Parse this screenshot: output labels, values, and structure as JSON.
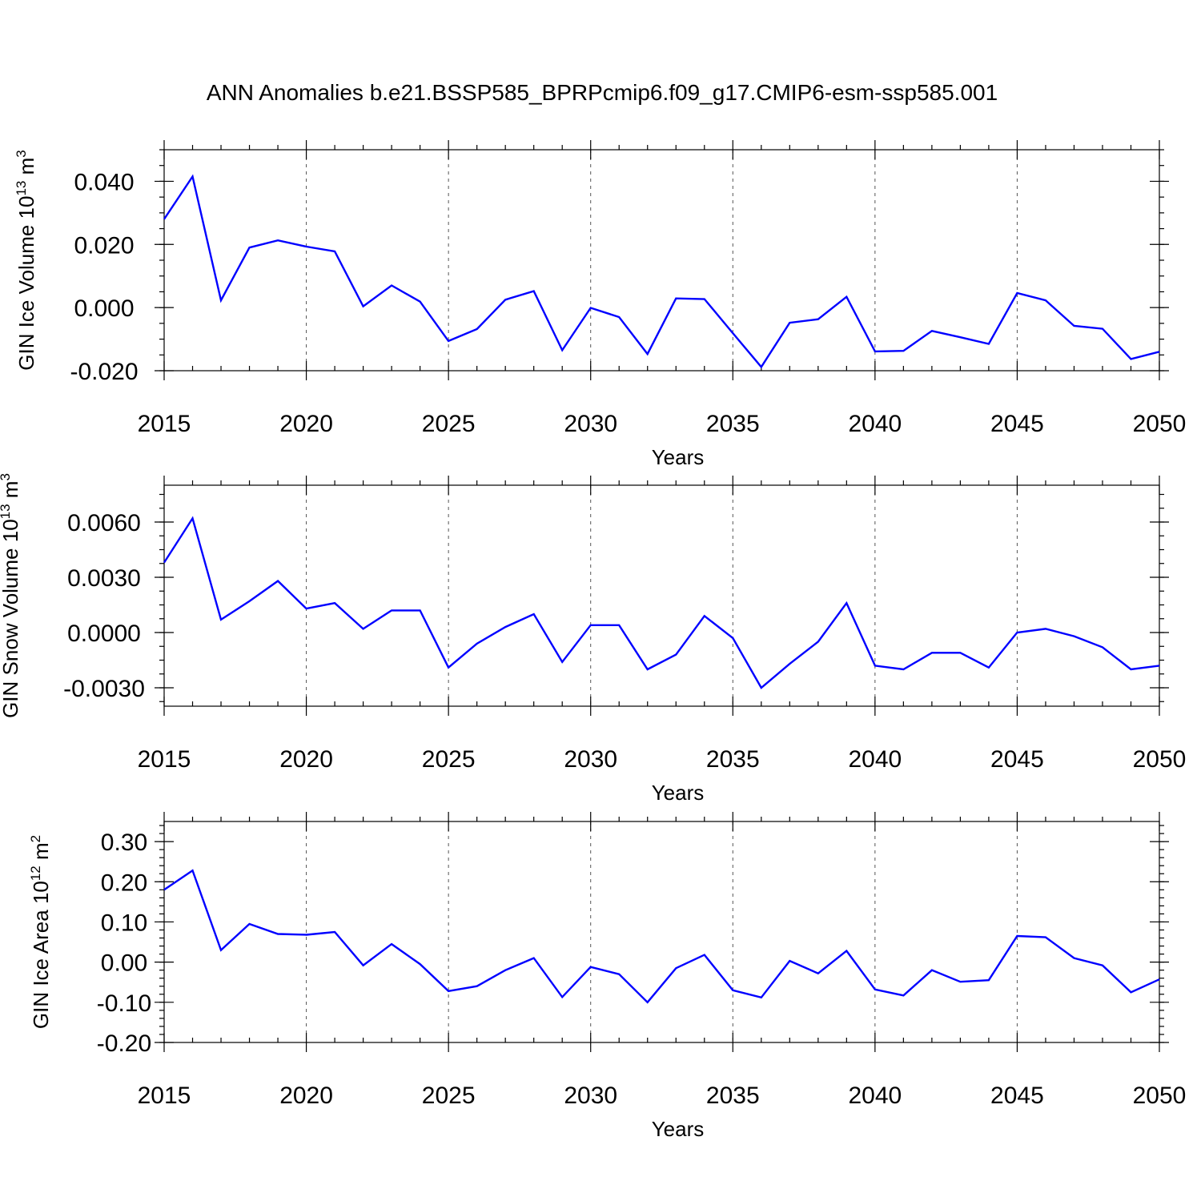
{
  "title": "ANN Anomalies b.e21.BSSP585_BPRPcmip6.f09_g17.CMIP6-esm-ssp585.001",
  "colors": {
    "line": "#0000ff",
    "axis": "#000000",
    "grid": "#555555"
  },
  "chart_data": [
    {
      "type": "line",
      "ylabel_main": "GIN Ice Volume 10",
      "ylabel_exp": "13",
      "ylabel_unit": " m",
      "ylabel_unit_exp": "3",
      "xlabel": "Years",
      "xlim": [
        2015,
        2050
      ],
      "ylim": [
        -0.02,
        0.05
      ],
      "yticks": [
        -0.02,
        0.0,
        0.02,
        0.04
      ],
      "yticklabels": [
        "-0.020",
        "0.000",
        "0.020",
        "0.040"
      ],
      "yminor_step": 0.005,
      "xticks": [
        2015,
        2020,
        2025,
        2030,
        2035,
        2040,
        2045,
        2050
      ],
      "xticklabels": [
        "2015",
        "2020",
        "2025",
        "2030",
        "2035",
        "2040",
        "2045",
        "2050"
      ],
      "grid": "vertical dashed at major x ticks",
      "x": [
        2015,
        2016,
        2017,
        2018,
        2019,
        2020,
        2021,
        2022,
        2023,
        2024,
        2025,
        2026,
        2027,
        2028,
        2029,
        2030,
        2031,
        2032,
        2033,
        2034,
        2035,
        2036,
        2037,
        2038,
        2039,
        2040,
        2041,
        2042,
        2043,
        2044,
        2045,
        2046,
        2047,
        2048,
        2049,
        2050
      ],
      "values": [
        0.028,
        0.0415,
        0.0023,
        0.019,
        0.0213,
        0.0193,
        0.0178,
        0.0004,
        0.007,
        0.0019,
        -0.0106,
        -0.0068,
        0.0025,
        0.0052,
        -0.0135,
        -0.0001,
        -0.003,
        -0.0147,
        0.0029,
        0.0027,
        -0.0081,
        -0.0188,
        -0.0048,
        -0.0037,
        0.0034,
        -0.0139,
        -0.0137,
        -0.0074,
        -0.0094,
        -0.0115,
        0.0046,
        0.0023,
        -0.0058,
        -0.0067,
        -0.0163,
        -0.014
      ]
    },
    {
      "type": "line",
      "ylabel_main": "GIN Snow Volume 10",
      "ylabel_exp": "13",
      "ylabel_unit": " m",
      "ylabel_unit_exp": "3",
      "xlabel": "Years",
      "xlim": [
        2015,
        2050
      ],
      "ylim": [
        -0.004,
        0.008
      ],
      "yticks": [
        -0.003,
        0.0,
        0.003,
        0.006
      ],
      "yticklabels": [
        "-0.0030",
        "0.0000",
        "0.0030",
        "0.0060"
      ],
      "yminor_step": 0.00075,
      "xticks": [
        2015,
        2020,
        2025,
        2030,
        2035,
        2040,
        2045,
        2050
      ],
      "xticklabels": [
        "2015",
        "2020",
        "2025",
        "2030",
        "2035",
        "2040",
        "2045",
        "2050"
      ],
      "grid": "vertical dashed at major x ticks",
      "x": [
        2015,
        2016,
        2017,
        2018,
        2019,
        2020,
        2021,
        2022,
        2023,
        2024,
        2025,
        2026,
        2027,
        2028,
        2029,
        2030,
        2031,
        2032,
        2033,
        2034,
        2035,
        2036,
        2037,
        2038,
        2039,
        2040,
        2041,
        2042,
        2043,
        2044,
        2045,
        2046,
        2047,
        2048,
        2049,
        2050
      ],
      "values": [
        0.0038,
        0.0062,
        0.0007,
        0.0017,
        0.0028,
        0.0013,
        0.0016,
        0.0002,
        0.0012,
        0.0012,
        -0.0019,
        -0.0006,
        0.0003,
        0.001,
        -0.0016,
        0.0004,
        0.0004,
        -0.002,
        -0.0012,
        0.0009,
        -0.0003,
        -0.003,
        -0.0017,
        -0.0005,
        0.0016,
        -0.0018,
        -0.002,
        -0.0011,
        -0.0011,
        -0.0019,
        0.0,
        0.0002,
        -0.0002,
        -0.0008,
        -0.002,
        -0.0018
      ]
    },
    {
      "type": "line",
      "ylabel_main": "GIN Ice Area 10",
      "ylabel_exp": "12",
      "ylabel_unit": " m",
      "ylabel_unit_exp": "2",
      "xlabel": "Years",
      "xlim": [
        2015,
        2050
      ],
      "ylim": [
        -0.2,
        0.35
      ],
      "yticks": [
        -0.2,
        -0.1,
        0.0,
        0.1,
        0.2,
        0.3
      ],
      "yticklabels": [
        "-0.20",
        "-0.10",
        "0.00",
        "0.10",
        "0.20",
        "0.30"
      ],
      "yminor_step": 0.02,
      "xticks": [
        2015,
        2020,
        2025,
        2030,
        2035,
        2040,
        2045,
        2050
      ],
      "xticklabels": [
        "2015",
        "2020",
        "2025",
        "2030",
        "2035",
        "2040",
        "2045",
        "2050"
      ],
      "grid": "vertical dashed at major x ticks",
      "x": [
        2015,
        2016,
        2017,
        2018,
        2019,
        2020,
        2021,
        2022,
        2023,
        2024,
        2025,
        2026,
        2027,
        2028,
        2029,
        2030,
        2031,
        2032,
        2033,
        2034,
        2035,
        2036,
        2037,
        2038,
        2039,
        2040,
        2041,
        2042,
        2043,
        2044,
        2045,
        2046,
        2047,
        2048,
        2049,
        2050
      ],
      "values": [
        0.18,
        0.228,
        0.03,
        0.095,
        0.07,
        0.068,
        0.075,
        -0.008,
        0.045,
        -0.005,
        -0.072,
        -0.06,
        -0.02,
        0.01,
        -0.087,
        -0.012,
        -0.03,
        -0.1,
        -0.015,
        0.018,
        -0.07,
        -0.088,
        0.003,
        -0.028,
        0.028,
        -0.068,
        -0.083,
        -0.02,
        -0.049,
        -0.045,
        0.065,
        0.062,
        0.01,
        -0.008,
        -0.075,
        -0.043
      ]
    }
  ]
}
